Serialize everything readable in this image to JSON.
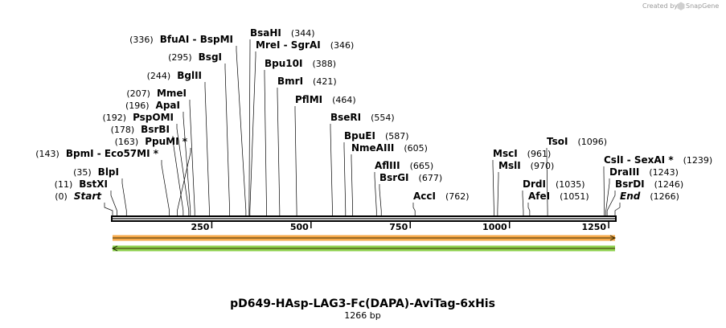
{
  "credit": {
    "created_by": "Created by",
    "brand": "SnapGene"
  },
  "sequence": {
    "name": "pD649-HAsp-LAG3-Fc(DAPA)-AviTag-6xHis",
    "length_label": "1266 bp",
    "length": 1266
  },
  "ruler": {
    "ticks": [
      250,
      500,
      750,
      1000,
      1250
    ]
  },
  "features": [
    {
      "name": "forward-feature-arrow",
      "color": "#f6a94a",
      "direction": "forward",
      "start": 0,
      "end": 1266
    },
    {
      "name": "reverse-feature-arrow",
      "color": "#8fd14f",
      "direction": "reverse",
      "start": 0,
      "end": 1266
    }
  ],
  "sites": [
    {
      "key": "start",
      "pos": 0,
      "pos_label": "(0)",
      "label": "Start",
      "italic": true,
      "side": "left"
    },
    {
      "key": "bstxi",
      "pos": 11,
      "pos_label": "(11)",
      "label": "BstXI",
      "side": "left"
    },
    {
      "key": "blpi",
      "pos": 35,
      "pos_label": "(35)",
      "label": "BlpI",
      "side": "left"
    },
    {
      "key": "bpmi",
      "pos": 143,
      "pos_label": "(143)",
      "label": "BpmI  - Eco57MI *",
      "side": "left"
    },
    {
      "key": "ppumi",
      "pos": 163,
      "pos_label": "(163)",
      "label": "PpuMI *",
      "side": "left"
    },
    {
      "key": "bsrbi",
      "pos": 178,
      "pos_label": "(178)",
      "label": "BsrBI",
      "side": "left"
    },
    {
      "key": "pspomi",
      "pos": 192,
      "pos_label": "(192)",
      "label": "PspOMI",
      "side": "left"
    },
    {
      "key": "apai",
      "pos": 196,
      "pos_label": "(196)",
      "label": "ApaI",
      "side": "left"
    },
    {
      "key": "mmei",
      "pos": 207,
      "pos_label": "(207)",
      "label": "MmeI",
      "side": "left"
    },
    {
      "key": "bglii",
      "pos": 244,
      "pos_label": "(244)",
      "label": "BglII",
      "side": "left"
    },
    {
      "key": "bsgi",
      "pos": 295,
      "pos_label": "(295)",
      "label": "BsgI",
      "side": "left"
    },
    {
      "key": "bfuai",
      "pos": 336,
      "pos_label": "(336)",
      "label": "BfuAI  - BspMI",
      "side": "left"
    },
    {
      "key": "bsahi",
      "pos": 344,
      "pos_label": "(344)",
      "label": "BsaHI",
      "side": "right"
    },
    {
      "key": "mrei",
      "pos": 346,
      "pos_label": "(346)",
      "label": "MreI  - SgrAI",
      "side": "right"
    },
    {
      "key": "bpu10i",
      "pos": 388,
      "pos_label": "(388)",
      "label": "Bpu10I",
      "side": "right"
    },
    {
      "key": "bmri",
      "pos": 421,
      "pos_label": "(421)",
      "label": "BmrI",
      "side": "right"
    },
    {
      "key": "pflmi",
      "pos": 464,
      "pos_label": "(464)",
      "label": "PflMI",
      "side": "right"
    },
    {
      "key": "bseri",
      "pos": 554,
      "pos_label": "(554)",
      "label": "BseRI",
      "side": "right"
    },
    {
      "key": "bpuei",
      "pos": 587,
      "pos_label": "(587)",
      "label": "BpuEI",
      "side": "right"
    },
    {
      "key": "nmeaiii",
      "pos": 605,
      "pos_label": "(605)",
      "label": "NmeAIII",
      "side": "right"
    },
    {
      "key": "afliii",
      "pos": 665,
      "pos_label": "(665)",
      "label": "AflIII",
      "side": "right"
    },
    {
      "key": "bsrgi",
      "pos": 677,
      "pos_label": "(677)",
      "label": "BsrGI",
      "side": "right"
    },
    {
      "key": "acci",
      "pos": 762,
      "pos_label": "(762)",
      "label": "AccI",
      "side": "right"
    },
    {
      "key": "msci",
      "pos": 961,
      "pos_label": "(961)",
      "label": "MscI",
      "side": "right"
    },
    {
      "key": "msli",
      "pos": 970,
      "pos_label": "(970)",
      "label": "MslI",
      "side": "right"
    },
    {
      "key": "drdi",
      "pos": 1035,
      "pos_label": "(1035)",
      "label": "DrdI",
      "side": "right"
    },
    {
      "key": "afei",
      "pos": 1051,
      "pos_label": "(1051)",
      "label": "AfeI",
      "side": "right"
    },
    {
      "key": "tsoi",
      "pos": 1096,
      "pos_label": "(1096)",
      "label": "TsoI",
      "side": "right"
    },
    {
      "key": "csli",
      "pos": 1239,
      "pos_label": "(1239)",
      "label": "CslI  - SexAI *",
      "side": "right"
    },
    {
      "key": "draiii",
      "pos": 1243,
      "pos_label": "(1243)",
      "label": "DraIII",
      "side": "right"
    },
    {
      "key": "bsrdi",
      "pos": 1246,
      "pos_label": "(1246)",
      "label": "BsrDI",
      "side": "right"
    },
    {
      "key": "end",
      "pos": 1266,
      "pos_label": "(1266)",
      "label": "End",
      "italic": true,
      "side": "right"
    }
  ]
}
